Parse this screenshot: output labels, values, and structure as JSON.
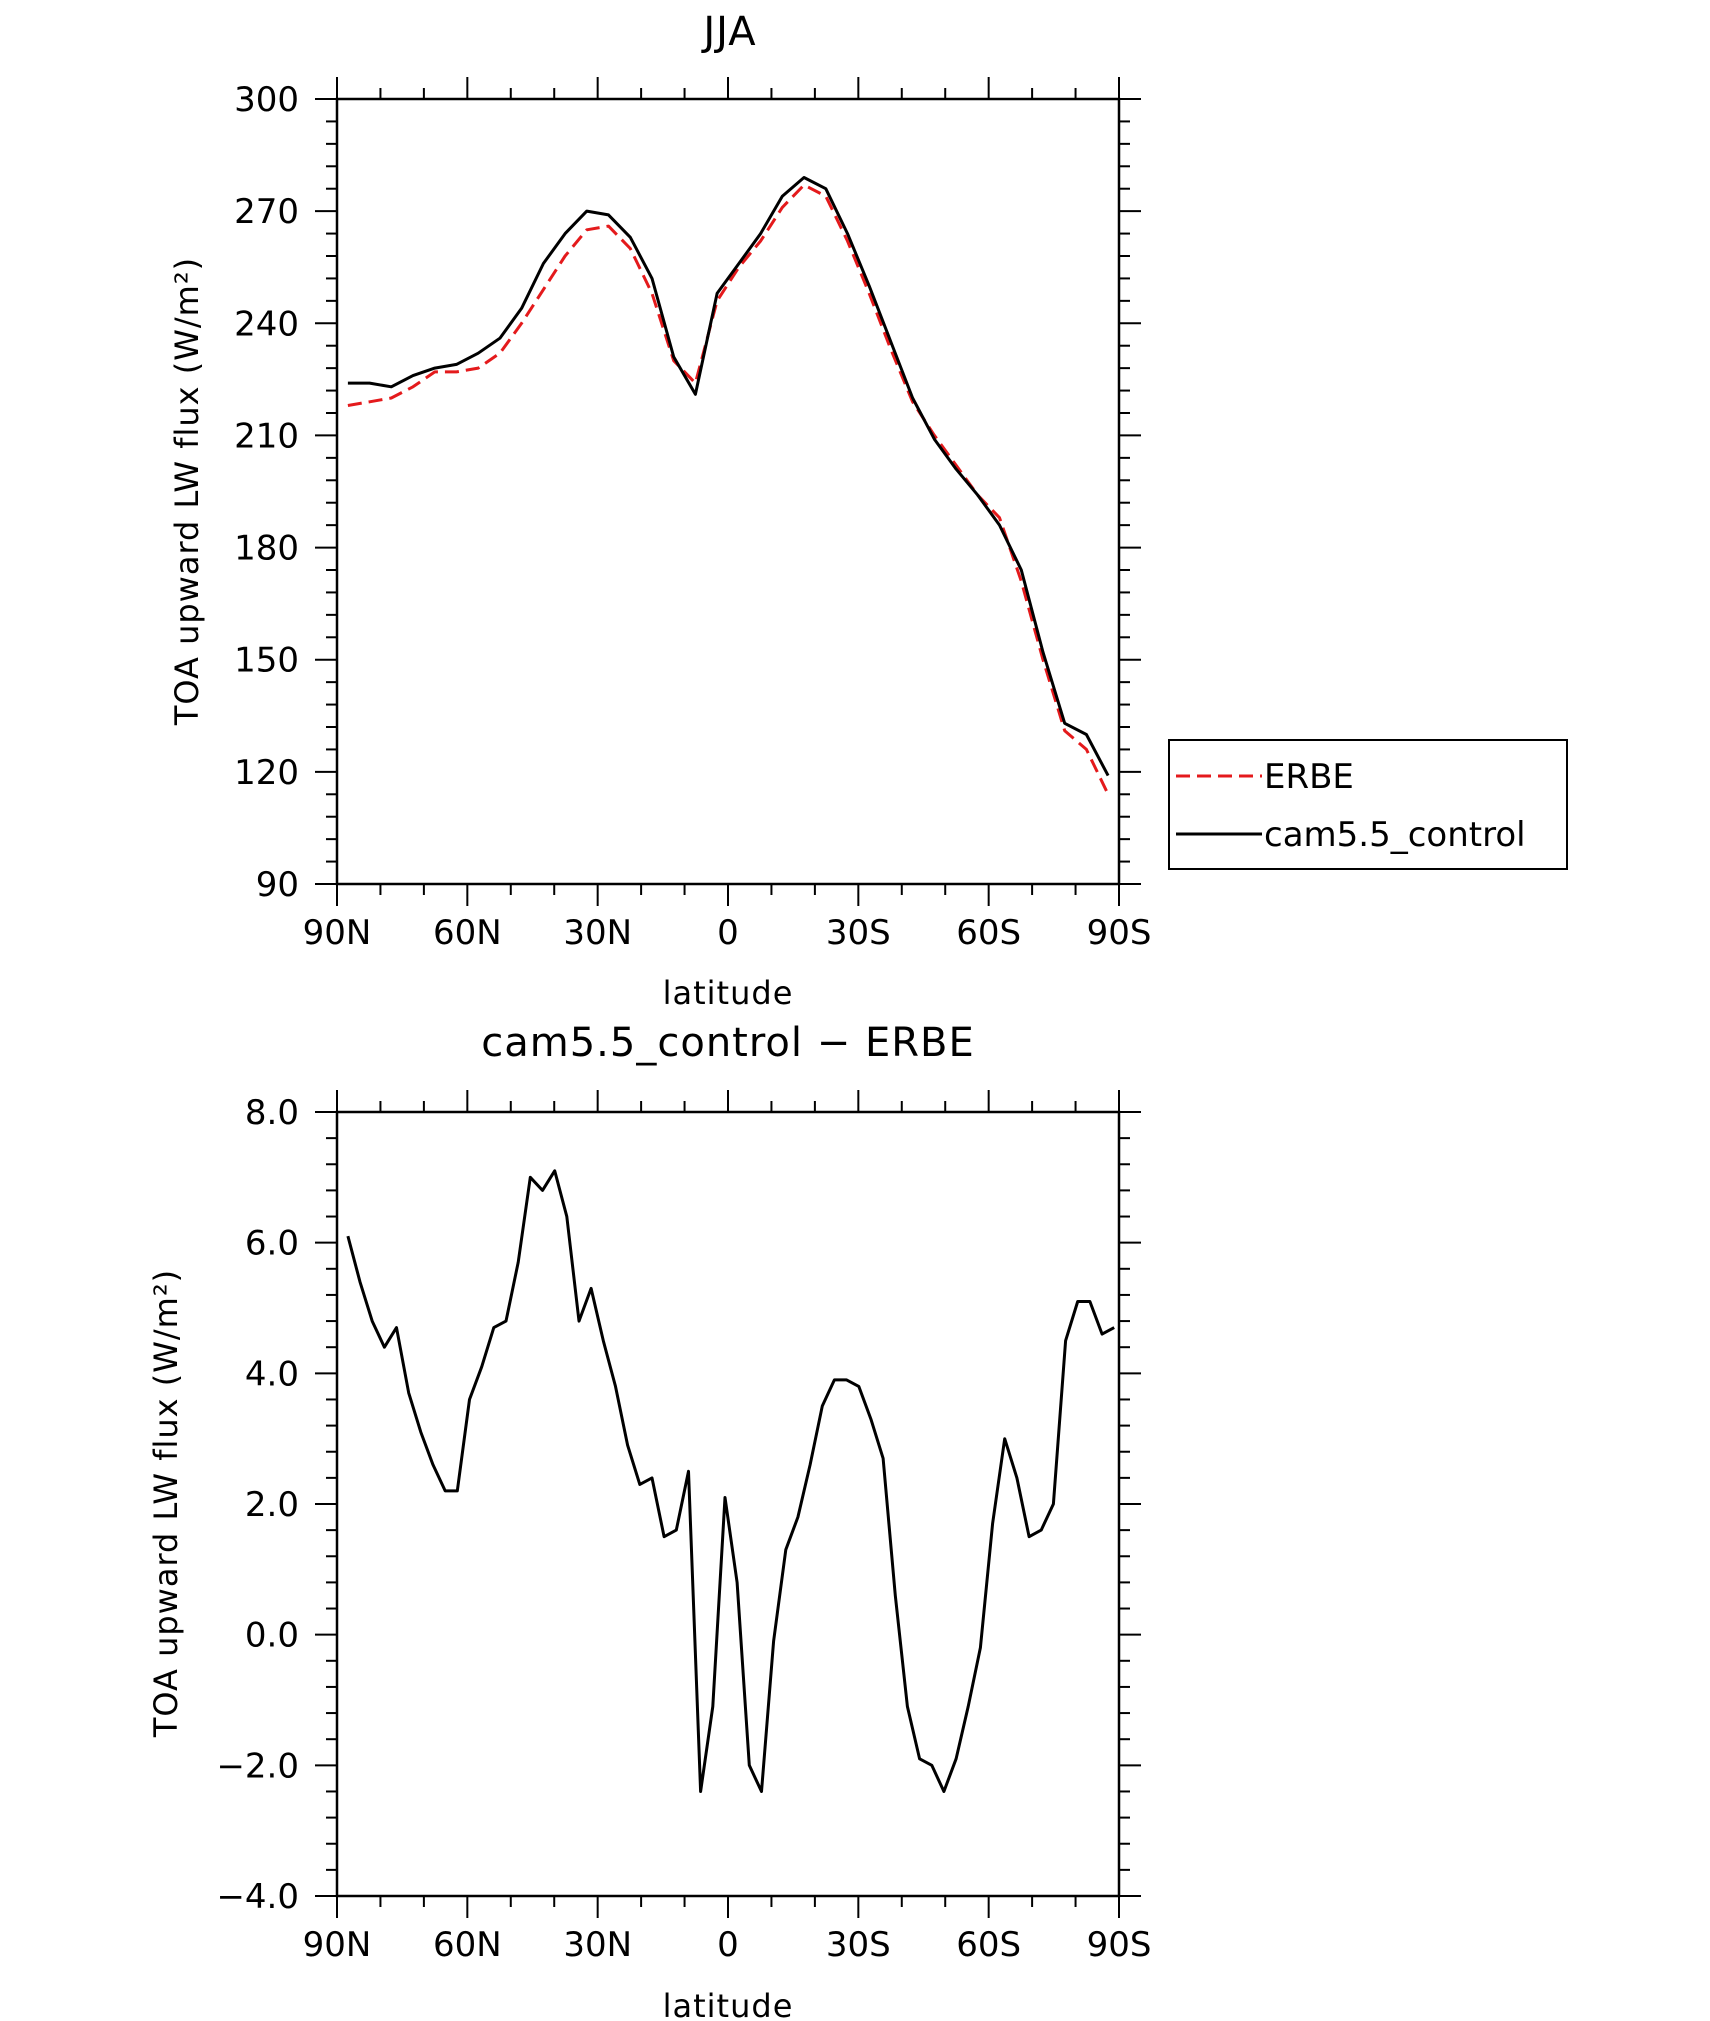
{
  "chart_data": [
    {
      "type": "line",
      "title": "JJA",
      "xlabel": "latitude",
      "ylabel": "TOA upward LW flux (W/m²)",
      "xlim": [
        -90,
        90
      ],
      "ylim": [
        90,
        300
      ],
      "xticks": [
        -90,
        -60,
        -30,
        0,
        30,
        60,
        90
      ],
      "xtick_labels": [
        "90N",
        "60N",
        "30N",
        "0",
        "30S",
        "60S",
        "90S"
      ],
      "yticks": [
        90,
        120,
        150,
        180,
        210,
        240,
        270,
        300
      ],
      "ytick_labels": [
        "90",
        "120",
        "150",
        "180",
        "210",
        "240",
        "270",
        "300"
      ],
      "grid": false,
      "legend_position": "right",
      "x": [
        -87.5,
        -82.5,
        -77.5,
        -72.5,
        -67.5,
        -62.5,
        -57.5,
        -52.5,
        -47.5,
        -42.5,
        -37.5,
        -32.5,
        -27.5,
        -22.5,
        -17.5,
        -12.5,
        -7.5,
        -2.5,
        2.5,
        7.5,
        12.5,
        17.5,
        22.5,
        27.5,
        32.5,
        37.5,
        42.5,
        47.5,
        52.5,
        57.5,
        62.5,
        67.5,
        72.5,
        77.5,
        82.5,
        87.5
      ],
      "series": [
        {
          "name": "ERBE",
          "color": "#e41a1c",
          "dash": "dashed",
          "values": [
            218,
            219,
            220,
            223,
            227,
            227,
            228,
            232,
            240,
            249,
            258,
            265,
            266,
            260,
            248,
            230,
            224,
            246,
            255,
            262,
            271,
            277,
            274,
            262,
            248,
            233,
            219,
            210,
            202,
            194,
            188,
            171,
            150,
            131,
            126,
            114
          ]
        },
        {
          "name": "cam5.5_control",
          "color": "#000000",
          "dash": "solid",
          "values": [
            224,
            224,
            223,
            226,
            228,
            229,
            232,
            236,
            244,
            256,
            264,
            270,
            269,
            263,
            252,
            231,
            221,
            248,
            256,
            264,
            274,
            279,
            276,
            264,
            250,
            235,
            220,
            209,
            201,
            194,
            186,
            174,
            152,
            133,
            130,
            119
          ]
        }
      ]
    },
    {
      "type": "line",
      "title": "cam5.5_control − ERBE",
      "xlabel": "latitude",
      "ylabel": "TOA upward LW flux (W/m²)",
      "xlim": [
        -90,
        90
      ],
      "ylim": [
        -4,
        8
      ],
      "xticks": [
        -90,
        -60,
        -30,
        0,
        30,
        60,
        90
      ],
      "xtick_labels": [
        "90N",
        "60N",
        "30N",
        "0",
        "30S",
        "60S",
        "90S"
      ],
      "yticks": [
        -4,
        -2,
        0,
        2,
        4,
        6,
        8
      ],
      "ytick_labels": [
        "−4.0",
        "−2.0",
        "0.0",
        "2.0",
        "4.0",
        "6.0",
        "8.0"
      ],
      "grid": false,
      "series": [
        {
          "color": "#000000",
          "dash": "solid",
          "x": [
            -87.5,
            -84.7,
            -81.9,
            -79.1,
            -76.3,
            -73.5,
            -70.7,
            -67.9,
            -65.1,
            -62.3,
            -59.5,
            -56.7,
            -53.9,
            -51.1,
            -48.3,
            -45.5,
            -42.7,
            -39.9,
            -37.1,
            -34.3,
            -31.5,
            -28.7,
            -25.9,
            -23.1,
            -20.3,
            -17.5,
            -14.7,
            -11.9,
            -9.1,
            -6.3,
            -3.5,
            -0.7,
            2.1,
            4.9,
            7.7,
            10.5,
            13.3,
            16.1,
            18.9,
            21.7,
            24.5,
            27.3,
            30.1,
            32.9,
            35.7,
            38.5,
            41.3,
            44.1,
            46.9,
            49.7,
            52.5,
            55.3,
            58.1,
            60.9,
            63.7,
            66.5,
            69.3,
            72.1,
            74.9,
            77.7,
            80.5,
            83.3,
            86.1,
            88.9
          ],
          "y": [
            6.1,
            5.4,
            4.8,
            4.4,
            4.7,
            3.7,
            3.1,
            2.6,
            2.2,
            2.2,
            3.6,
            4.1,
            4.7,
            4.8,
            5.7,
            7.0,
            6.8,
            7.1,
            6.4,
            4.8,
            5.3,
            4.5,
            3.8,
            2.9,
            2.3,
            2.4,
            1.5,
            1.6,
            2.5,
            -2.4,
            -1.1,
            2.1,
            0.8,
            -2.0,
            -2.4,
            -0.1,
            1.3,
            1.8,
            2.6,
            3.5,
            3.9,
            3.9,
            3.8,
            3.3,
            2.7,
            0.6,
            -1.1,
            -1.9,
            -2.0,
            -2.4,
            -1.9,
            -1.1,
            -0.2,
            1.7,
            3.0,
            2.4,
            1.5,
            1.6,
            2.0,
            4.5,
            5.1,
            5.1,
            4.6,
            4.7
          ]
        }
      ]
    }
  ]
}
